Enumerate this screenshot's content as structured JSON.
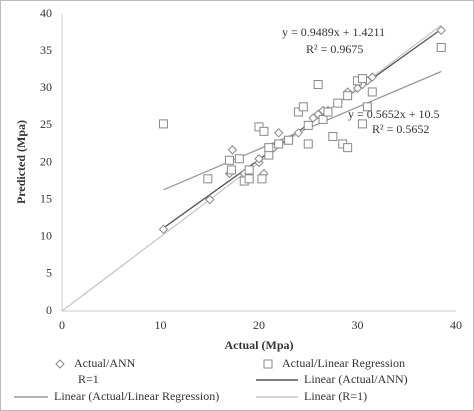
{
  "chart_data": {
    "type": "scatter",
    "x_label": "Actual (Mpa)",
    "y_label": "Predicted (Mpa)",
    "xlim": [
      0,
      40
    ],
    "ylim": [
      0,
      40
    ],
    "xticks": [
      0,
      10,
      20,
      30,
      40
    ],
    "yticks": [
      0,
      5,
      10,
      15,
      20,
      25,
      30,
      35,
      40
    ],
    "grid": false,
    "series": [
      {
        "name": "Actual/ANN",
        "marker": "diamond",
        "color": "#888888",
        "x": [
          10.3,
          15,
          17,
          17.3,
          18.5,
          19,
          20,
          20.5,
          20,
          21,
          21.5,
          22,
          23,
          24,
          25,
          25.5,
          26,
          26.5,
          27,
          28,
          29,
          30,
          30.5,
          31,
          31.5,
          38.5
        ],
        "values": [
          11,
          15,
          18.5,
          21.7,
          18.5,
          19,
          20,
          18.5,
          20.5,
          21,
          22,
          24,
          23,
          24,
          25,
          26,
          26.5,
          27,
          27,
          28,
          29.5,
          30,
          30.5,
          31,
          31.5,
          37.8
        ]
      },
      {
        "name": "Actual/Linear Regression",
        "marker": "square",
        "color": "#888888",
        "x": [
          10.3,
          14.8,
          17,
          17.2,
          18,
          18.5,
          19,
          19,
          20,
          20.3,
          20.5,
          21,
          21,
          22,
          23,
          24,
          24.5,
          25,
          25,
          26,
          26.5,
          27,
          27.5,
          28,
          28.5,
          29,
          29,
          30,
          30.5,
          30.5,
          31,
          31.5,
          38.5
        ],
        "values": [
          25.2,
          17.8,
          20.3,
          19,
          20.5,
          17.5,
          17.8,
          19,
          24.8,
          17.8,
          24.2,
          21,
          22,
          22.5,
          23,
          26.8,
          27.5,
          25,
          22.5,
          30.5,
          25.8,
          26.8,
          23.5,
          28,
          22.5,
          22,
          29,
          31,
          31.3,
          25.2,
          27.5,
          29.5,
          35.5
        ]
      },
      {
        "name": "R=1",
        "marker": "none",
        "color": "#bbbbbb",
        "x": [
          0,
          38.5
        ],
        "values": [
          0,
          38.5
        ]
      }
    ],
    "trendlines": [
      {
        "name": "Linear (Actual/ANN)",
        "color": "#555555",
        "x": [
          10.3,
          38.5
        ],
        "values": [
          11.19,
          37.95
        ],
        "equation": "y = 0.9489x + 1.4211",
        "r_squared": "R² = 0.9675"
      },
      {
        "name": "Linear (Actual/Linear Regression)",
        "color": "#999999",
        "x": [
          10.3,
          38.5
        ],
        "values": [
          16.32,
          32.26
        ],
        "equation": "y = 0.5652x + 10.5",
        "r_squared": "R² = 0.5652"
      },
      {
        "name": "Linear (R=1)",
        "color": "#c8c8c8",
        "x": [
          0,
          38.5
        ],
        "values": [
          0,
          38.5
        ]
      }
    ]
  }
}
